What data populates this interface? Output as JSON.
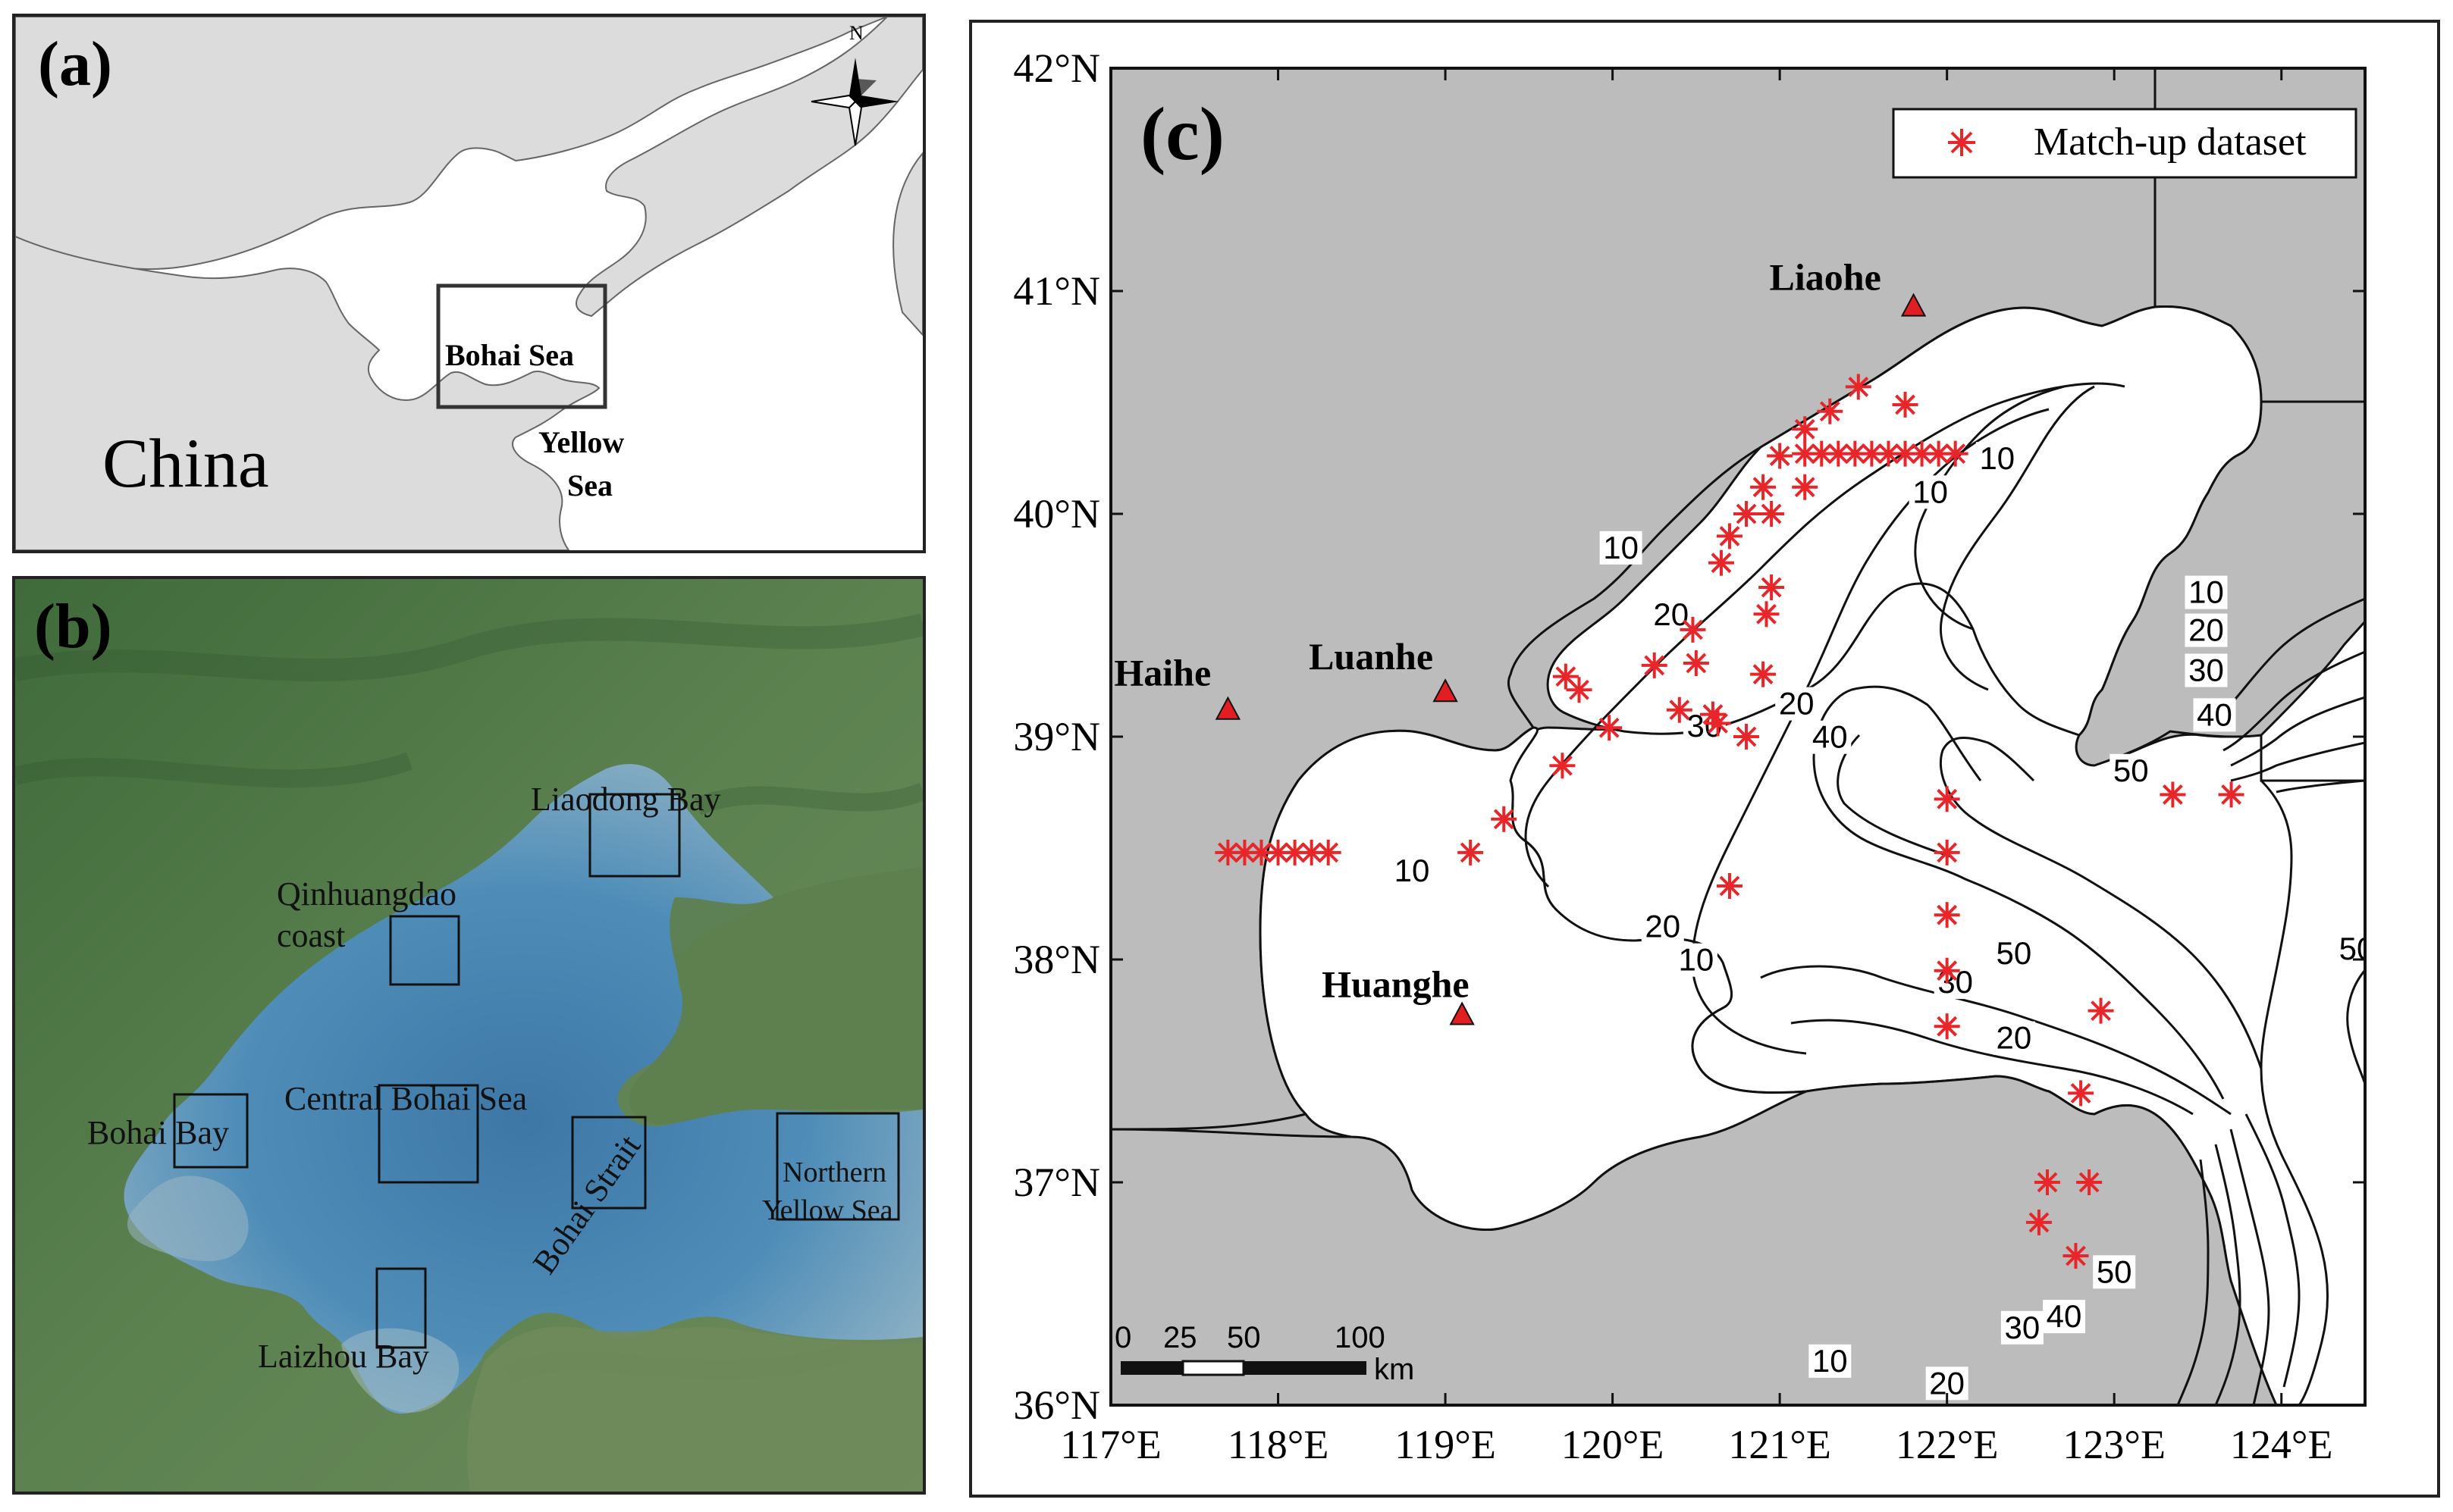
{
  "panel_a": {
    "label": "(a)",
    "country_label": "China",
    "region_label": "Bohai Sea",
    "sea_label_line1": "Yellow",
    "sea_label_line2": "Sea",
    "north_label": "N",
    "colors": {
      "land": "#dcdcdc",
      "sea": "#ffffff"
    }
  },
  "panel_b": {
    "label": "(b)",
    "regions": [
      {
        "id": "liaodong",
        "label": "Liaodong Bay"
      },
      {
        "id": "qinhuangdao",
        "label_line1": "Qinhuangdao",
        "label_line2": "coast"
      },
      {
        "id": "bohai-bay",
        "label": "Bohai Bay"
      },
      {
        "id": "central",
        "label": "Central Bohai Sea"
      },
      {
        "id": "strait",
        "label": "Bohai Strait"
      },
      {
        "id": "nys",
        "label_line1": "Northern",
        "label_line2": "Yellow Sea"
      },
      {
        "id": "laizhou",
        "label": "Laizhou Bay"
      }
    ]
  },
  "panel_c": {
    "label": "(c)",
    "legend_label": "Match-up dataset",
    "rivers": [
      {
        "name": "Liaohe",
        "lon": 121.8,
        "lat": 40.93
      },
      {
        "name": "Luanhe",
        "lon": 119.0,
        "lat": 39.2
      },
      {
        "name": "Haihe",
        "lon": 117.7,
        "lat": 39.12
      },
      {
        "name": "Huanghe",
        "lon": 119.1,
        "lat": 37.75
      }
    ],
    "lon_ticks": [
      "117°E",
      "118°E",
      "119°E",
      "120°E",
      "121°E",
      "122°E",
      "123°E",
      "124°E"
    ],
    "lat_ticks": [
      "36°N",
      "37°N",
      "38°N",
      "39°N",
      "40°N",
      "41°N",
      "42°N"
    ],
    "scale_bar": {
      "labels": [
        "0",
        "25",
        "50",
        "100"
      ],
      "unit": "km"
    },
    "contour_labels": [
      {
        "text": "10",
        "lon": 120.05,
        "lat": 39.8
      },
      {
        "text": "20",
        "lon": 120.35,
        "lat": 39.5
      },
      {
        "text": "10",
        "lon": 121.9,
        "lat": 40.05
      },
      {
        "text": "10",
        "lon": 122.3,
        "lat": 40.2
      },
      {
        "text": "30",
        "lon": 120.55,
        "lat": 39.0
      },
      {
        "text": "20",
        "lon": 121.1,
        "lat": 39.1
      },
      {
        "text": "40",
        "lon": 121.3,
        "lat": 38.95
      },
      {
        "text": "10",
        "lon": 118.8,
        "lat": 38.35
      },
      {
        "text": "20",
        "lon": 120.3,
        "lat": 38.1
      },
      {
        "text": "10",
        "lon": 120.5,
        "lat": 37.95
      },
      {
        "text": "50",
        "lon": 122.4,
        "lat": 37.98
      },
      {
        "text": "30",
        "lon": 122.05,
        "lat": 37.85
      },
      {
        "text": "20",
        "lon": 122.4,
        "lat": 37.6
      },
      {
        "text": "10",
        "lon": 123.55,
        "lat": 39.6
      },
      {
        "text": "20",
        "lon": 123.55,
        "lat": 39.43
      },
      {
        "text": "30",
        "lon": 123.55,
        "lat": 39.25
      },
      {
        "text": "40",
        "lon": 123.6,
        "lat": 39.05
      },
      {
        "text": "50",
        "lon": 123.1,
        "lat": 38.8
      },
      {
        "text": "50",
        "lon": 124.45,
        "lat": 38.0
      },
      {
        "text": "10",
        "lon": 121.3,
        "lat": 36.15
      },
      {
        "text": "20",
        "lon": 122.0,
        "lat": 36.05
      },
      {
        "text": "30",
        "lon": 122.45,
        "lat": 36.3
      },
      {
        "text": "40",
        "lon": 122.7,
        "lat": 36.35
      },
      {
        "text": "50",
        "lon": 123.0,
        "lat": 36.55
      }
    ],
    "matchup_points": [
      [
        117.7,
        38.48
      ],
      [
        117.8,
        38.48
      ],
      [
        117.9,
        38.48
      ],
      [
        118.0,
        38.48
      ],
      [
        118.1,
        38.48
      ],
      [
        118.2,
        38.48
      ],
      [
        118.3,
        38.48
      ],
      [
        121.15,
        40.27
      ],
      [
        121.25,
        40.27
      ],
      [
        121.35,
        40.27
      ],
      [
        121.45,
        40.27
      ],
      [
        121.55,
        40.27
      ],
      [
        121.65,
        40.27
      ],
      [
        121.75,
        40.27
      ],
      [
        121.85,
        40.27
      ],
      [
        121.95,
        40.27
      ],
      [
        122.05,
        40.27
      ],
      [
        121.47,
        40.57
      ],
      [
        121.75,
        40.49
      ],
      [
        121.3,
        40.46
      ],
      [
        121.15,
        40.38
      ],
      [
        121.0,
        40.26
      ],
      [
        121.15,
        40.12
      ],
      [
        120.9,
        40.12
      ],
      [
        120.95,
        40.0
      ],
      [
        120.8,
        40.0
      ],
      [
        120.7,
        39.9
      ],
      [
        120.65,
        39.78
      ],
      [
        120.95,
        39.67
      ],
      [
        120.92,
        39.55
      ],
      [
        120.48,
        39.48
      ],
      [
        120.5,
        39.33
      ],
      [
        120.9,
        39.28
      ],
      [
        120.25,
        39.32
      ],
      [
        119.72,
        39.27
      ],
      [
        119.8,
        39.21
      ],
      [
        119.98,
        39.04
      ],
      [
        120.4,
        39.12
      ],
      [
        120.6,
        39.1
      ],
      [
        120.63,
        39.06
      ],
      [
        120.8,
        39.0
      ],
      [
        119.7,
        38.87
      ],
      [
        119.35,
        38.63
      ],
      [
        119.15,
        38.48
      ],
      [
        120.7,
        38.33
      ],
      [
        122.0,
        38.72
      ],
      [
        122.0,
        38.48
      ],
      [
        122.0,
        38.2
      ],
      [
        122.0,
        37.95
      ],
      [
        122.0,
        37.7
      ],
      [
        122.92,
        37.77
      ],
      [
        122.8,
        37.4
      ],
      [
        122.6,
        37.0
      ],
      [
        122.85,
        37.0
      ],
      [
        122.55,
        36.82
      ],
      [
        122.77,
        36.67
      ],
      [
        123.35,
        38.74
      ],
      [
        123.7,
        38.74
      ]
    ],
    "colors": {
      "land": "#bcbcbc",
      "sea": "#ffffff",
      "marker": "#e8262a"
    }
  }
}
